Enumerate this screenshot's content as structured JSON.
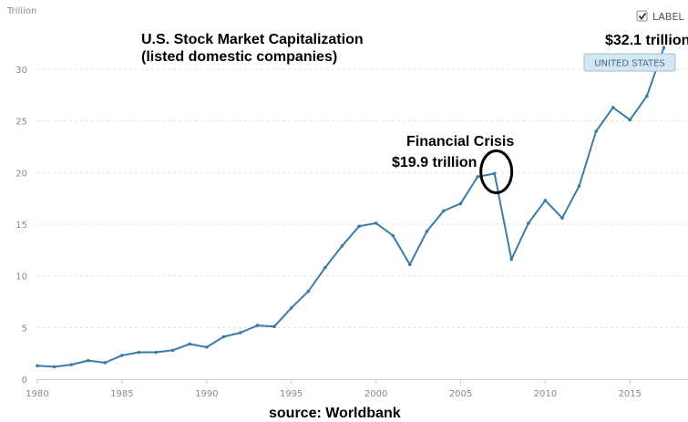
{
  "legend": {
    "label_toggle": "LABEL",
    "checked": true
  },
  "chart_data": {
    "type": "line",
    "title": "U.S. Stock Market Capitalization",
    "subtitle": "(listed domestic companies)",
    "unit_label": "Trillion",
    "ylim": [
      0,
      33
    ],
    "yticks": [
      0,
      5,
      10,
      15,
      20,
      25,
      30
    ],
    "xlim": [
      1980,
      2018.3
    ],
    "xticks": [
      1980,
      1985,
      1990,
      1995,
      2000,
      2005,
      2010,
      2015
    ],
    "series": [
      {
        "name": "UNITED STATES",
        "color": "#3a7ca8",
        "x": [
          1980,
          1981,
          1982,
          1983,
          1984,
          1985,
          1986,
          1987,
          1988,
          1989,
          1990,
          1991,
          1992,
          1993,
          1994,
          1995,
          1996,
          1997,
          1998,
          1999,
          2000,
          2001,
          2002,
          2003,
          2004,
          2005,
          2006,
          2007,
          2008,
          2009,
          2010,
          2011,
          2012,
          2013,
          2014,
          2015,
          2016,
          2017
        ],
        "values": [
          1.3,
          1.2,
          1.4,
          1.8,
          1.6,
          2.3,
          2.6,
          2.6,
          2.8,
          3.4,
          3.1,
          4.1,
          4.5,
          5.2,
          5.1,
          6.9,
          8.5,
          10.8,
          12.9,
          14.8,
          15.1,
          13.9,
          11.1,
          14.3,
          16.3,
          17.0,
          19.6,
          19.9,
          11.6,
          15.1,
          17.3,
          15.6,
          18.7,
          24.0,
          26.3,
          25.1,
          27.4,
          32.1
        ]
      }
    ],
    "annotations": {
      "crisis_title": "Financial Crisis",
      "crisis_value": "$19.9 trillion",
      "crisis_year": 2007,
      "crisis_point": 19.9,
      "peak_value": "$32.1 trillion"
    },
    "source": "source: Worldbank"
  }
}
